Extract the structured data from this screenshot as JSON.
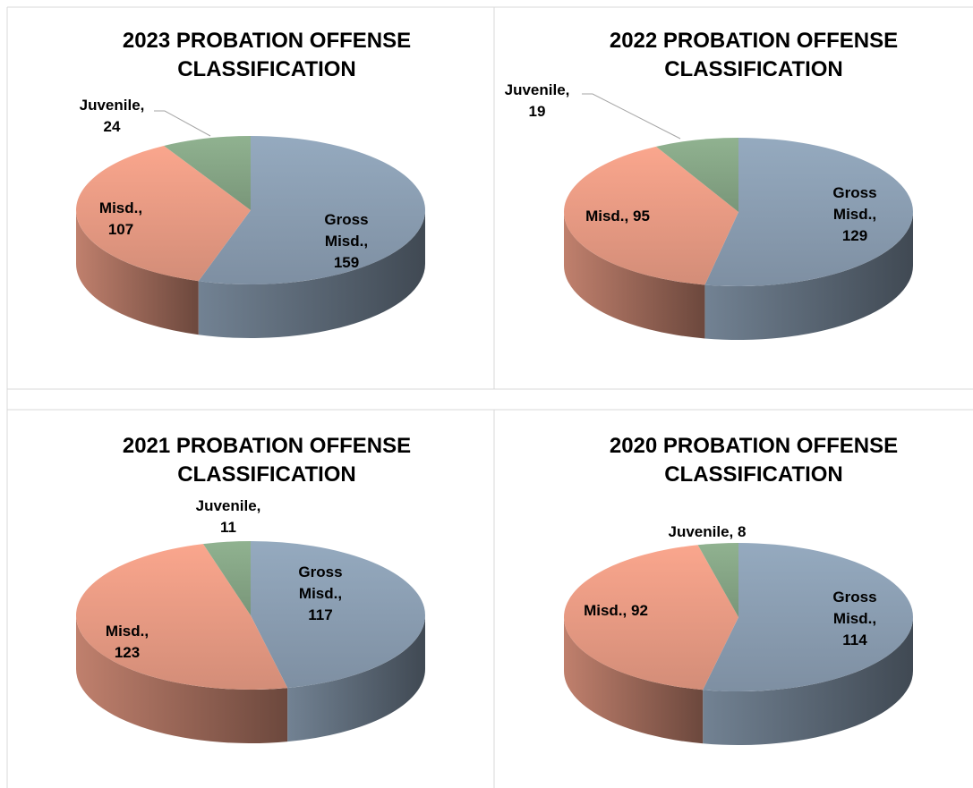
{
  "chart_data": [
    {
      "type": "pie",
      "title": "2023 PROBATION OFFENSE CLASSIFICATION",
      "categories": [
        "Gross Misd.,",
        "Misd.,",
        "Juvenile,"
      ],
      "values": [
        159,
        107,
        24
      ],
      "colors": [
        "#8fa3b8",
        "#f0a088",
        "#8aab8a"
      ]
    },
    {
      "type": "pie",
      "title": "2022 PROBATION OFFENSE CLASSIFICATION",
      "categories": [
        "Gross Misd.,",
        "Misd.,",
        "Juvenile,"
      ],
      "values": [
        129,
        95,
        19
      ],
      "colors": [
        "#8fa3b8",
        "#f0a088",
        "#8aab8a"
      ]
    },
    {
      "type": "pie",
      "title": "2021 PROBATION OFFENSE CLASSIFICATION",
      "categories": [
        "Gross Misd.,",
        "Misd.,",
        "Juvenile,"
      ],
      "values": [
        117,
        123,
        11
      ],
      "colors": [
        "#8fa3b8",
        "#f0a088",
        "#8aab8a"
      ]
    },
    {
      "type": "pie",
      "title": "2020 PROBATION OFFENSE CLASSIFICATION",
      "categories": [
        "Gross Misd.,",
        "Misd.,",
        "Juvenile,"
      ],
      "values": [
        114,
        92,
        8
      ],
      "colors": [
        "#8fa3b8",
        "#f0a088",
        "#8aab8a"
      ]
    }
  ]
}
